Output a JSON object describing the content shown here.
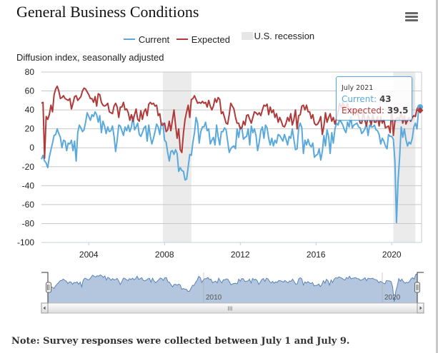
{
  "header": {
    "title": "General Business Conditions",
    "menu_icon": "hamburger-menu-icon"
  },
  "legend": [
    {
      "label": "Current",
      "color": "#5aa9dd",
      "kind": "line"
    },
    {
      "label": "Expected",
      "color": "#b03a3a",
      "kind": "line"
    },
    {
      "label": "U.S. recession",
      "color": "#e6e6e6",
      "kind": "box"
    }
  ],
  "tooltip": {
    "date": "July 2021",
    "current_label": "Current: ",
    "current_value": "43",
    "expected_label": "Expected: ",
    "expected_value": "39.5"
  },
  "navigator": {
    "tick_labels": [
      "2010",
      "2020"
    ],
    "scrollbar_grip": "III",
    "left_arrow_icon": "arrow-left-icon",
    "right_arrow_icon": "arrow-right-icon"
  },
  "note": "Note: Survey responses were collected between July 1 and July 9.",
  "chart_data": {
    "type": "line",
    "title": "General Business Conditions",
    "ylabel": "Diffusion index, seasonally adjusted",
    "xlabel": "",
    "ylim": [
      -100,
      80
    ],
    "yticks": [
      80,
      60,
      40,
      20,
      0,
      -20,
      -40,
      -60,
      -80,
      -100
    ],
    "xticks": [
      "2004",
      "2008",
      "2012",
      "2016",
      "2020"
    ],
    "x_start": "2001-07",
    "x_end": "2021-07",
    "frequency": "monthly",
    "grid": true,
    "legend_position": "top-center",
    "recessions": [
      {
        "start": "2007-12",
        "end": "2009-06"
      },
      {
        "start": "2020-02",
        "end": "2021-04"
      }
    ],
    "series": [
      {
        "name": "Current",
        "color": "#5aa9dd",
        "values": [
          -12,
          -8,
          -14,
          -16,
          -21,
          -10,
          -2,
          5,
          13,
          14,
          20,
          15,
          11,
          0,
          8,
          7,
          -3,
          5,
          4,
          8,
          -3,
          7,
          -14,
          16,
          24,
          21,
          17,
          19,
          27,
          37,
          33,
          29,
          35,
          33,
          38,
          35,
          27,
          34,
          16,
          28,
          23,
          15,
          22,
          17,
          18,
          23,
          12,
          -4,
          8,
          24,
          23,
          18,
          13,
          22,
          18,
          24,
          17,
          22,
          33,
          19,
          22,
          26,
          14,
          12,
          16,
          21,
          23,
          7,
          24,
          12,
          4,
          10,
          17,
          25,
          22,
          14,
          26,
          26,
          8,
          6,
          -5,
          -14,
          -4,
          -3,
          -7,
          -2,
          -6,
          -25,
          -21,
          -24,
          -25,
          -34,
          -33,
          -20,
          -7,
          -8,
          6,
          16,
          32,
          26,
          5,
          17,
          22,
          22,
          27,
          18,
          20,
          4,
          8,
          11,
          3,
          24,
          12,
          3,
          17,
          17,
          21,
          19,
          7,
          -5,
          -1,
          1,
          2,
          -1,
          20,
          11,
          22,
          21,
          9,
          11,
          12,
          20,
          3,
          23,
          16,
          20,
          13,
          -3,
          6,
          18,
          22,
          10,
          24,
          21,
          10,
          3,
          10,
          2,
          8,
          5,
          14,
          13,
          10,
          7,
          14,
          9,
          3,
          12,
          10,
          20,
          9,
          -2,
          -1,
          21,
          26,
          21,
          -6,
          8,
          3,
          9,
          3,
          1,
          5,
          -10,
          -8,
          -7,
          -1,
          -13,
          -4,
          13,
          2,
          19,
          12,
          -6,
          16,
          5,
          20,
          26,
          24,
          30,
          27,
          24,
          19,
          16,
          27,
          22,
          33,
          21,
          24,
          25,
          26,
          22,
          21,
          15,
          17,
          20,
          26,
          13,
          24,
          22,
          22,
          24,
          19,
          18,
          14,
          4,
          10,
          7,
          2,
          -1,
          14,
          12,
          12,
          9,
          -14,
          -79,
          -35,
          -10,
          22,
          11,
          20,
          9,
          2,
          6,
          4,
          10,
          22,
          26,
          20,
          40,
          43
        ]
      },
      {
        "name": "Expected",
        "color": "#b03a3a",
        "values": [
          47,
          48,
          -11,
          33,
          30,
          35,
          45,
          38,
          56,
          62,
          65,
          60,
          52,
          53,
          55,
          52,
          51,
          50,
          52,
          41,
          47,
          54,
          55,
          50,
          52,
          54,
          60,
          63,
          62,
          59,
          56,
          52,
          52,
          48,
          54,
          44,
          57,
          56,
          48,
          45,
          44,
          45,
          47,
          38,
          37,
          36,
          44,
          47,
          43,
          32,
          43,
          43,
          48,
          40,
          41,
          37,
          29,
          35,
          28,
          35,
          41,
          30,
          28,
          39,
          30,
          38,
          41,
          34,
          46,
          48,
          46,
          47,
          44,
          45,
          34,
          36,
          24,
          24,
          26,
          17,
          19,
          28,
          18,
          29,
          40,
          24,
          10,
          20,
          -2,
          -5,
          16,
          30,
          38,
          45,
          32,
          51,
          52,
          55,
          51,
          47,
          48,
          47,
          49,
          47,
          48,
          43,
          50,
          44,
          40,
          44,
          52,
          48,
          53,
          51,
          36,
          38,
          32,
          26,
          25,
          35,
          47,
          44,
          41,
          32,
          26,
          26,
          20,
          21,
          28,
          24,
          34,
          35,
          30,
          26,
          32,
          38,
          37,
          35,
          37,
          34,
          40,
          45,
          44,
          46,
          35,
          43,
          37,
          40,
          32,
          36,
          27,
          32,
          28,
          23,
          22,
          26,
          32,
          28,
          36,
          24,
          30,
          40,
          20,
          34,
          35,
          44,
          45,
          40,
          45,
          38,
          38,
          31,
          35,
          26,
          24,
          25,
          28,
          33,
          14,
          23,
          37,
          27,
          32,
          36,
          28,
          32,
          25,
          31,
          38,
          47,
          42,
          48,
          43,
          38,
          47,
          39,
          42,
          37,
          40,
          35,
          41,
          33,
          26,
          26,
          38,
          29,
          23,
          34,
          30,
          24,
          35,
          27,
          27,
          33,
          23,
          33,
          26,
          30,
          21,
          22,
          23,
          16,
          42,
          13,
          28,
          31,
          32,
          30,
          38,
          26,
          34,
          25,
          29,
          32,
          28,
          32,
          34,
          33,
          41,
          44,
          39.5
        ]
      }
    ]
  }
}
